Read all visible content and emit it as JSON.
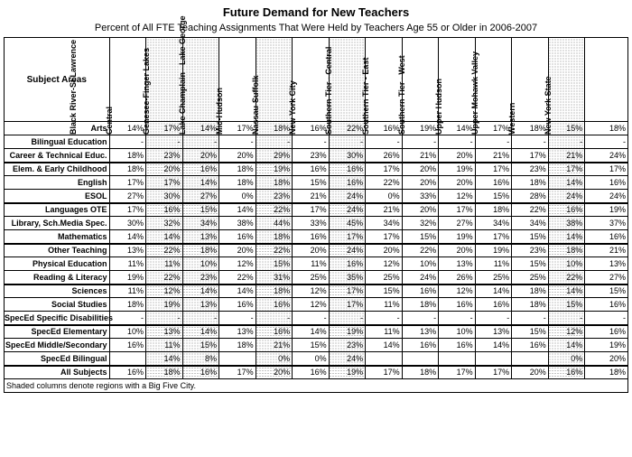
{
  "title": "Future Demand for New Teachers",
  "subtitle": "Percent of All FTE Teaching Assignments That Were Held by Teachers Age 55 or Older in 2006-2007",
  "row_header_label": "Subject Areas",
  "footnote": "Shaded columns denote regions with a Big Five City.",
  "columns": [
    {
      "label": "Black River-St Lawrence",
      "shaded": false
    },
    {
      "label": "Central",
      "shaded": true
    },
    {
      "label": "Genesee-Finger Lakes",
      "shaded": true
    },
    {
      "label": "Lake Champlain - Lake George",
      "shaded": false
    },
    {
      "label": "Mid-Hudson",
      "shaded": true
    },
    {
      "label": "Nassau-Suffolk",
      "shaded": false
    },
    {
      "label": "New York City",
      "shaded": true
    },
    {
      "label": "Southern Tier - Central",
      "shaded": false
    },
    {
      "label": "Southern Tier - East",
      "shaded": false
    },
    {
      "label": "Southern Tier - West",
      "shaded": false
    },
    {
      "label": "Upper Hudson",
      "shaded": false
    },
    {
      "label": "Upper Mohawk Valley",
      "shaded": false
    },
    {
      "label": "Western",
      "shaded": true
    },
    {
      "label": "New York State",
      "shaded": false
    }
  ],
  "groups": [
    [
      {
        "label": "Arts",
        "v": [
          "14%",
          "17%",
          "14%",
          "17%",
          "18%",
          "16%",
          "22%",
          "16%",
          "19%",
          "14%",
          "17%",
          "18%",
          "15%",
          "18%"
        ]
      },
      {
        "label": "Bilingual Education",
        "v": [
          "-",
          "-",
          "-",
          "-",
          "-",
          "-",
          "-",
          "-",
          "-",
          "-",
          "-",
          "-",
          "-",
          "-"
        ]
      },
      {
        "label": "Career & Technical Educ.",
        "v": [
          "18%",
          "23%",
          "20%",
          "20%",
          "29%",
          "23%",
          "30%",
          "26%",
          "21%",
          "20%",
          "21%",
          "17%",
          "21%",
          "24%"
        ]
      }
    ],
    [
      {
        "label": "Elem. & Early Childhood",
        "v": [
          "18%",
          "20%",
          "16%",
          "18%",
          "19%",
          "16%",
          "16%",
          "17%",
          "20%",
          "19%",
          "17%",
          "23%",
          "17%",
          "17%"
        ]
      },
      {
        "label": "English",
        "v": [
          "17%",
          "17%",
          "14%",
          "18%",
          "18%",
          "15%",
          "16%",
          "22%",
          "20%",
          "20%",
          "16%",
          "18%",
          "14%",
          "16%"
        ]
      },
      {
        "label": "ESOL",
        "v": [
          "27%",
          "30%",
          "27%",
          "0%",
          "23%",
          "21%",
          "24%",
          "0%",
          "33%",
          "12%",
          "15%",
          "28%",
          "24%",
          "24%"
        ]
      }
    ],
    [
      {
        "label": "Languages OTE",
        "v": [
          "17%",
          "16%",
          "15%",
          "14%",
          "22%",
          "17%",
          "24%",
          "21%",
          "20%",
          "17%",
          "18%",
          "22%",
          "16%",
          "19%"
        ]
      },
      {
        "label": "Library, Sch.Media Spec.",
        "v": [
          "30%",
          "32%",
          "34%",
          "38%",
          "44%",
          "33%",
          "45%",
          "34%",
          "32%",
          "27%",
          "34%",
          "34%",
          "38%",
          "37%"
        ]
      },
      {
        "label": "Mathematics",
        "v": [
          "14%",
          "14%",
          "13%",
          "16%",
          "18%",
          "16%",
          "17%",
          "17%",
          "15%",
          "19%",
          "17%",
          "15%",
          "14%",
          "16%"
        ]
      }
    ],
    [
      {
        "label": "Other Teaching",
        "v": [
          "13%",
          "22%",
          "18%",
          "20%",
          "22%",
          "20%",
          "24%",
          "20%",
          "22%",
          "20%",
          "19%",
          "23%",
          "18%",
          "21%"
        ]
      },
      {
        "label": "Physical Education",
        "v": [
          "11%",
          "11%",
          "10%",
          "12%",
          "15%",
          "11%",
          "16%",
          "12%",
          "10%",
          "13%",
          "11%",
          "15%",
          "10%",
          "13%"
        ]
      },
      {
        "label": "Reading & Literacy",
        "v": [
          "19%",
          "22%",
          "23%",
          "22%",
          "31%",
          "25%",
          "35%",
          "25%",
          "24%",
          "26%",
          "25%",
          "25%",
          "22%",
          "27%"
        ]
      }
    ],
    [
      {
        "label": "Sciences",
        "v": [
          "11%",
          "12%",
          "14%",
          "14%",
          "18%",
          "12%",
          "17%",
          "15%",
          "16%",
          "12%",
          "14%",
          "18%",
          "14%",
          "15%"
        ]
      },
      {
        "label": "Social Studies",
        "v": [
          "18%",
          "19%",
          "13%",
          "16%",
          "16%",
          "12%",
          "17%",
          "11%",
          "18%",
          "16%",
          "16%",
          "18%",
          "15%",
          "16%"
        ]
      },
      {
        "label": "SpecEd Specific Disabilities",
        "v": [
          "-",
          "-",
          "-",
          "-",
          "-",
          "-",
          "-",
          "-",
          "-",
          "-",
          "-",
          "-",
          "-",
          "-"
        ]
      }
    ],
    [
      {
        "label": "SpecEd Elementary",
        "v": [
          "10%",
          "13%",
          "14%",
          "13%",
          "16%",
          "14%",
          "19%",
          "11%",
          "13%",
          "10%",
          "13%",
          "15%",
          "12%",
          "16%"
        ]
      },
      {
        "label": "SpecEd Middle/Secondary",
        "v": [
          "16%",
          "11%",
          "15%",
          "18%",
          "21%",
          "15%",
          "23%",
          "14%",
          "16%",
          "16%",
          "14%",
          "16%",
          "14%",
          "19%"
        ]
      },
      {
        "label": "SpecEd Bilingual",
        "v": [
          "",
          "14%",
          "8%",
          "",
          "0%",
          "0%",
          "24%",
          "",
          "",
          "",
          "",
          "",
          "0%",
          "20%"
        ]
      }
    ],
    [
      {
        "label": "All Subjects",
        "v": [
          "16%",
          "18%",
          "16%",
          "17%",
          "20%",
          "16%",
          "19%",
          "17%",
          "18%",
          "17%",
          "17%",
          "20%",
          "16%",
          "18%"
        ]
      }
    ]
  ]
}
